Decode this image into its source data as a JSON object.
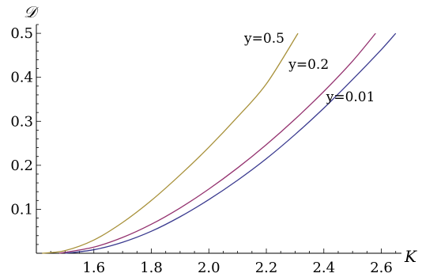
{
  "chart_data": {
    "type": "line",
    "title": "",
    "xlabel": "K",
    "ylabel": "𝒟",
    "xlim": [
      1.4,
      2.67
    ],
    "ylim": [
      0,
      0.52
    ],
    "x_ticks": [
      "1.6",
      "1.8",
      "2.0",
      "2.2",
      "2.4",
      "2.6"
    ],
    "y_ticks": [
      "0.1",
      "0.2",
      "0.3",
      "0.4",
      "0.5"
    ],
    "grid": false,
    "legend": "none",
    "series": [
      {
        "name": "y=0.5",
        "color": "#a8913a",
        "x": [
          1.42,
          1.5,
          1.6,
          1.7,
          1.8,
          1.9,
          2.0,
          2.1,
          2.2,
          2.31
        ],
        "y": [
          0.0,
          0.006,
          0.03,
          0.07,
          0.12,
          0.178,
          0.241,
          0.31,
          0.385,
          0.5
        ]
      },
      {
        "name": "y=0.2",
        "color": "#94326f",
        "x": [
          1.48,
          1.6,
          1.7,
          1.8,
          1.9,
          2.0,
          2.1,
          2.2,
          2.3,
          2.4,
          2.5,
          2.58
        ],
        "y": [
          0.0,
          0.014,
          0.036,
          0.066,
          0.103,
          0.146,
          0.194,
          0.247,
          0.305,
          0.368,
          0.437,
          0.5
        ]
      },
      {
        "name": "y=0.01",
        "color": "#3a3a8f",
        "x": [
          1.5,
          1.6,
          1.7,
          1.8,
          1.9,
          2.0,
          2.1,
          2.2,
          2.3,
          2.4,
          2.5,
          2.6,
          2.65
        ],
        "y": [
          0.0,
          0.008,
          0.025,
          0.05,
          0.083,
          0.122,
          0.166,
          0.215,
          0.27,
          0.33,
          0.395,
          0.463,
          0.5
        ]
      }
    ]
  }
}
